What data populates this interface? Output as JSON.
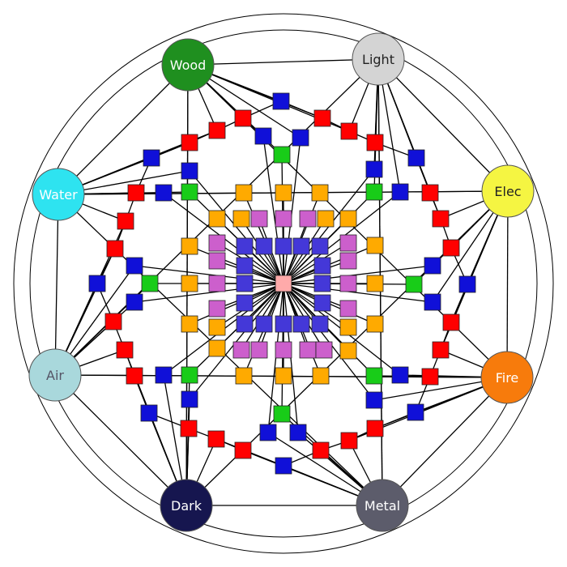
{
  "elements": [
    {
      "label": "Wood",
      "fill": "#1f8f1f",
      "text_color": "#ffffff"
    },
    {
      "label": "Light",
      "fill": "#d4d4d4",
      "text_color": "#222222"
    },
    {
      "label": "Elec",
      "fill": "#f5f542",
      "text_color": "#222222"
    },
    {
      "label": "Fire",
      "fill": "#f77b0c",
      "text_color": "#ffffff"
    },
    {
      "label": "Metal",
      "fill": "#5c5c6b",
      "text_color": "#ffffff"
    },
    {
      "label": "Dark",
      "fill": "#16164f",
      "text_color": "#ffffff"
    },
    {
      "label": "Air",
      "fill": "#a9d8dc",
      "text_color": "#555566"
    },
    {
      "label": "Water",
      "fill": "#2ee3f0",
      "text_color": "#ffffff"
    }
  ],
  "colors": {
    "red": "#ff0000",
    "blue": "#1010d8",
    "green": "#18cc18",
    "orange": "#ffaa00",
    "violet": "#cc5fcc",
    "indigo": "#4438d8",
    "center": "#ffaaaa",
    "line": "#000000"
  }
}
